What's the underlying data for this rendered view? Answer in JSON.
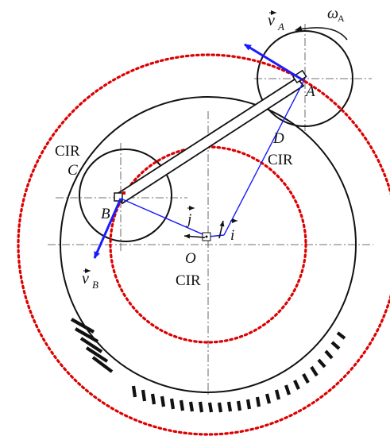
{
  "labels": {
    "vA": "v",
    "vA_sub": "A",
    "omega": "ω",
    "omega_sub": "A",
    "A": "A",
    "D": "D",
    "D_cir": "CIR",
    "C_cir": "CIR",
    "C": "C",
    "B": "B",
    "j": "j",
    "i": "i",
    "O": "O",
    "O_cir": "CIR",
    "vB": "v",
    "vB_sub": "B"
  },
  "colors": {
    "ink": "#111111",
    "vector_blue": "#1a1aff",
    "dotted_red": "#dd0000"
  }
}
